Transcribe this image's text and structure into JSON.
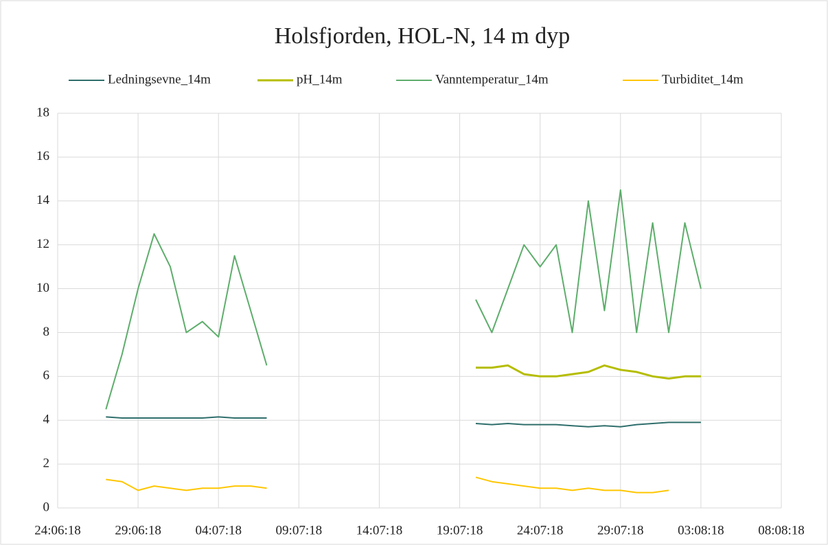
{
  "chart_data": {
    "type": "line",
    "title": "Holsfjorden, HOL-N, 14 m dyp",
    "x": [
      "2018-06-27",
      "2018-06-28",
      "2018-06-29",
      "2018-06-30",
      "2018-07-01",
      "2018-07-02",
      "2018-07-03",
      "2018-07-04",
      "2018-07-05",
      "2018-07-06",
      "2018-07-07",
      "2018-07-08",
      "2018-07-09",
      "2018-07-10",
      "2018-07-11",
      "2018-07-12",
      "2018-07-13",
      "2018-07-14",
      "2018-07-15",
      "2018-07-16",
      "2018-07-17",
      "2018-07-18",
      "2018-07-19",
      "2018-07-20",
      "2018-07-21",
      "2018-07-22",
      "2018-07-23",
      "2018-07-24",
      "2018-07-25",
      "2018-07-26",
      "2018-07-27",
      "2018-07-28",
      "2018-07-29",
      "2018-07-30",
      "2018-07-31",
      "2018-08-01",
      "2018-08-02",
      "2018-08-03"
    ],
    "series": [
      {
        "name": "Ledningsevne_14m",
        "color": "#2e6e6b",
        "values": [
          4.15,
          4.1,
          4.1,
          4.1,
          4.1,
          4.1,
          4.1,
          4.15,
          4.1,
          4.1,
          4.1,
          null,
          null,
          null,
          null,
          null,
          null,
          null,
          null,
          null,
          null,
          null,
          null,
          3.85,
          3.8,
          3.85,
          3.8,
          3.8,
          3.8,
          3.75,
          3.7,
          3.75,
          3.7,
          3.8,
          3.85,
          3.9,
          3.9,
          3.9
        ]
      },
      {
        "name": "pH_14m",
        "color": "#b5bd00",
        "values": [
          null,
          null,
          null,
          null,
          null,
          null,
          null,
          null,
          null,
          null,
          null,
          null,
          null,
          null,
          null,
          null,
          null,
          null,
          null,
          null,
          null,
          null,
          null,
          6.4,
          6.4,
          6.5,
          6.1,
          6.0,
          6.0,
          6.1,
          6.2,
          6.5,
          6.3,
          6.2,
          6.0,
          5.9,
          6.0,
          6.0
        ]
      },
      {
        "name": "Vanntemperatur_14m",
        "color": "#5dad6b",
        "values": [
          4.5,
          7,
          10,
          12.5,
          11,
          8,
          8.5,
          7.8,
          11.5,
          9,
          6.5,
          null,
          null,
          null,
          null,
          null,
          null,
          null,
          null,
          null,
          null,
          null,
          null,
          9.5,
          8,
          10,
          12,
          11,
          12,
          8,
          14,
          9,
          14.5,
          8,
          13,
          8,
          13,
          10
        ]
      },
      {
        "name": "Turbiditet_14m",
        "color": "#ffc600",
        "values": [
          1.3,
          1.2,
          0.8,
          1.0,
          0.9,
          0.8,
          0.9,
          0.9,
          1.0,
          1.0,
          0.9,
          null,
          null,
          null,
          null,
          null,
          null,
          null,
          null,
          null,
          null,
          null,
          null,
          1.4,
          1.2,
          1.1,
          1.0,
          0.9,
          0.9,
          0.8,
          0.9,
          0.8,
          0.8,
          0.7,
          0.7,
          0.8,
          null,
          null
        ]
      }
    ],
    "xlim": [
      "2018-06-24",
      "2018-08-08"
    ],
    "xticks": [
      {
        "value": "2018-06-24",
        "label": "24:06:18"
      },
      {
        "value": "2018-06-29",
        "label": "29:06:18"
      },
      {
        "value": "2018-07-04",
        "label": "04:07:18"
      },
      {
        "value": "2018-07-09",
        "label": "09:07:18"
      },
      {
        "value": "2018-07-14",
        "label": "14:07:18"
      },
      {
        "value": "2018-07-19",
        "label": "19:07:18"
      },
      {
        "value": "2018-07-24",
        "label": "24:07:18"
      },
      {
        "value": "2018-07-29",
        "label": "29:07:18"
      },
      {
        "value": "2018-08-03",
        "label": "03:08:18"
      },
      {
        "value": "2018-08-08",
        "label": "08:08:18"
      }
    ],
    "ylim": [
      0,
      18
    ],
    "yticks": [
      0,
      2,
      4,
      6,
      8,
      10,
      12,
      14,
      16,
      18
    ],
    "grid": true,
    "legend": "top"
  }
}
